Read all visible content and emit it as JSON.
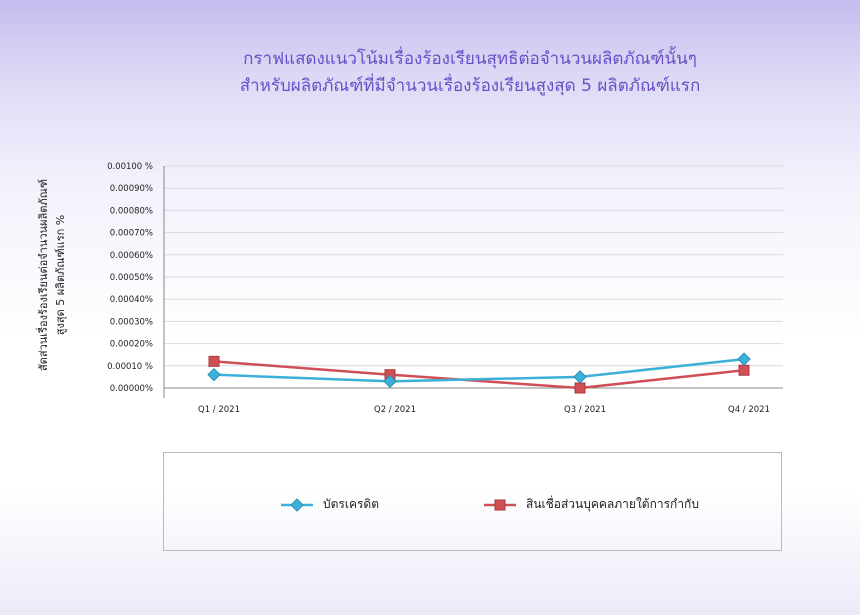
{
  "title": {
    "line1": "กราฟแสดงแนวโน้มเรื่องร้องเรียนสุทธิต่อจำนวนผลิตภัณฑ์นั้นๆ",
    "line2": "สำหรับผลิตภัณฑ์ที่มีจำนวนเรื่องร้องเรียนสูงสุด 5 ผลิตภัณฑ์แรก"
  },
  "ylabel": {
    "line1": "สัดส่วนเรื่องร้องเรียนต่อจำนวนผลิตภัณฑ์",
    "line2": "สูงสุด 5 ผลิตภัณฑ์แรก    %"
  },
  "colors": {
    "series1": "#3bb0d8",
    "series2": "#cf4f55",
    "grid": "#d9d9de",
    "axis": "#888888"
  },
  "chart_data": {
    "type": "line",
    "categories": [
      "Q1 / 2021",
      "Q2 / 2021",
      "Q3 / 2021",
      "Q4 / 2021"
    ],
    "yticks": [
      "0.00000%",
      "0.00010 %",
      "0.00020%",
      "0.00030%",
      "0.00040%",
      "0.00050%",
      "0.00060%",
      "0.00070%",
      "0.00080%",
      "0.00090%",
      "0.00100 %"
    ],
    "ylim": [
      0,
      0.001
    ],
    "series": [
      {
        "name": "บัตรเครดิต",
        "values": [
          6e-05,
          3e-05,
          5e-05,
          0.00013
        ]
      },
      {
        "name": "สินเชื่อส่วนบุคคลภายใต้การกำกับ",
        "values": [
          0.00012,
          6e-05,
          0.0,
          8e-05
        ]
      }
    ],
    "legend_position": "bottom"
  }
}
